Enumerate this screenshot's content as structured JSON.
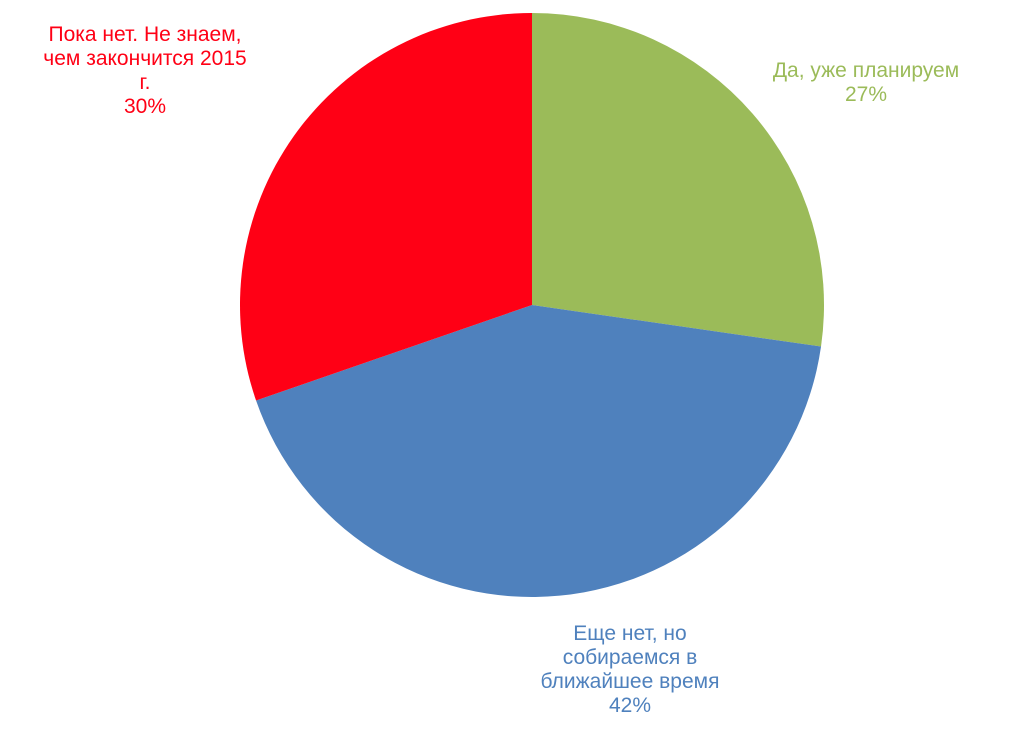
{
  "chart_data": {
    "type": "pie",
    "title": "",
    "start_angle_deg": 0,
    "direction": "clockwise",
    "slices": [
      {
        "label_lines": [
          "Да, уже планируем"
        ],
        "value": 27,
        "value_label": "27%",
        "color": "#9BBB59"
      },
      {
        "label_lines": [
          "Еще нет, но",
          "собираемся в",
          "ближайшее время"
        ],
        "value": 42,
        "value_label": "42%",
        "color": "#4F81BD"
      },
      {
        "label_lines": [
          "Пока нет. Не знаем,",
          "чем закончится 2015",
          "г."
        ],
        "value": 30,
        "value_label": "30%",
        "color": "#FF0015"
      }
    ]
  }
}
